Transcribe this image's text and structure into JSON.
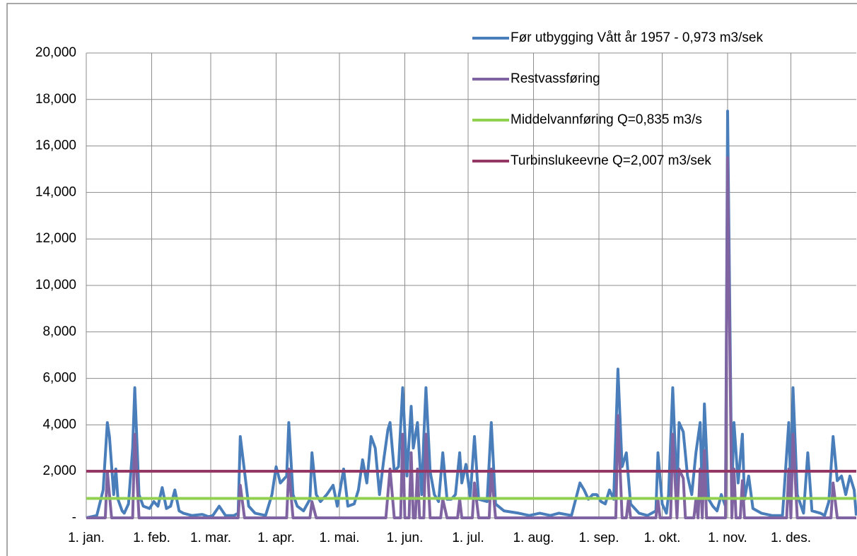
{
  "chart_data": {
    "type": "line",
    "xlim": [
      0,
      365
    ],
    "xticks": [
      {
        "value": 0,
        "label": "1. jan."
      },
      {
        "value": 31,
        "label": "1. feb."
      },
      {
        "value": 59,
        "label": "1. mar."
      },
      {
        "value": 90,
        "label": "1. apr."
      },
      {
        "value": 120,
        "label": "1. mai."
      },
      {
        "value": 151,
        "label": "1. jun."
      },
      {
        "value": 181,
        "label": "1. jul."
      },
      {
        "value": 212,
        "label": "1. aug."
      },
      {
        "value": 243,
        "label": "1. sep."
      },
      {
        "value": 273,
        "label": "1. okt."
      },
      {
        "value": 304,
        "label": "1. nov."
      },
      {
        "value": 334,
        "label": "1. des."
      }
    ],
    "ylim": [
      0,
      20000
    ],
    "yticks": [
      {
        "value": 0,
        "label": "-"
      },
      {
        "value": 2000,
        "label": "2,000"
      },
      {
        "value": 4000,
        "label": "4,000"
      },
      {
        "value": 6000,
        "label": "6,000"
      },
      {
        "value": 8000,
        "label": "8,000"
      },
      {
        "value": 10000,
        "label": "10,000"
      },
      {
        "value": 12000,
        "label": "12,000"
      },
      {
        "value": 14000,
        "label": "14,000"
      },
      {
        "value": 16000,
        "label": "16,000"
      },
      {
        "value": 18000,
        "label": "18,000"
      },
      {
        "value": 20000,
        "label": "20,000"
      }
    ],
    "grid": true,
    "legend": "upper right",
    "series": [
      {
        "name": "Før utbygging Vått år 1957 - 0,973 m3/sek",
        "color": "#4a7ebb",
        "x": [
          0,
          5,
          8,
          10,
          11,
          13,
          14,
          15,
          17,
          18,
          20,
          22,
          23,
          25,
          27,
          30,
          32,
          34,
          36,
          38,
          40,
          42,
          44,
          46,
          50,
          55,
          58,
          60,
          63,
          66,
          70,
          72,
          73,
          75,
          77,
          80,
          85,
          88,
          90,
          92,
          95,
          96,
          98,
          100,
          103,
          106,
          107,
          109,
          111,
          114,
          117,
          119,
          122,
          124,
          127,
          129,
          131,
          133,
          135,
          137,
          139,
          141,
          143,
          144,
          146,
          148,
          150,
          152,
          154,
          155,
          157,
          159,
          160,
          161,
          163,
          165,
          167,
          169,
          171,
          173,
          175,
          177,
          178,
          180,
          182,
          184,
          186,
          190,
          192,
          194,
          198,
          205,
          210,
          215,
          220,
          224,
          230,
          234,
          236,
          238,
          240,
          242,
          244,
          246,
          248,
          250,
          252,
          254,
          256,
          258,
          262,
          266,
          270,
          271,
          273,
          275,
          276,
          278,
          280,
          281,
          283,
          285,
          287,
          289,
          291,
          292,
          293,
          295,
          297,
          299,
          301,
          303,
          304,
          306,
          307,
          309,
          311,
          312,
          314,
          316,
          320,
          325,
          330,
          333,
          334,
          335,
          337,
          340,
          342,
          344,
          348,
          350,
          352,
          354,
          356,
          358,
          360,
          362,
          364,
          365
        ],
        "values": [
          0,
          100,
          1200,
          4100,
          3500,
          1000,
          2100,
          800,
          300,
          200,
          600,
          3000,
          5600,
          1000,
          500,
          400,
          700,
          500,
          1300,
          400,
          500,
          1200,
          300,
          200,
          100,
          150,
          50,
          100,
          500,
          100,
          100,
          200,
          3500,
          2000,
          500,
          200,
          100,
          1000,
          2200,
          1500,
          1800,
          4100,
          1000,
          500,
          300,
          800,
          2800,
          1000,
          700,
          1000,
          1400,
          500,
          2100,
          500,
          600,
          1200,
          2500,
          1500,
          3500,
          3000,
          1000,
          2500,
          3800,
          4100,
          2000,
          2200,
          5600,
          1800,
          4800,
          3000,
          4100,
          1000,
          3500,
          5600,
          2000,
          1000,
          700,
          2800,
          800,
          800,
          1000,
          2800,
          1500,
          2300,
          900,
          3500,
          800,
          700,
          4100,
          600,
          300,
          200,
          100,
          200,
          100,
          200,
          100,
          1500,
          1200,
          800,
          1000,
          1000,
          700,
          600,
          1200,
          800,
          6400,
          2200,
          2800,
          600,
          200,
          100,
          300,
          2800,
          600,
          200,
          1000,
          5600,
          1000,
          4100,
          3700,
          1800,
          1000,
          2800,
          4100,
          1000,
          4900,
          800,
          500,
          300,
          1000,
          500,
          17500,
          1000,
          4100,
          1500,
          3600,
          800,
          1800,
          400,
          200,
          100,
          100,
          4100,
          1000,
          5600,
          1000,
          200,
          2800,
          300,
          200,
          100,
          700,
          3500,
          1600,
          1800,
          1000,
          1800,
          1200,
          100
        ]
      },
      {
        "name": "Restvassføring",
        "color": "#8064a2",
        "x": [
          0,
          9,
          10,
          12,
          22,
          23,
          25,
          72,
          73,
          75,
          95,
          96,
          98,
          106,
          107,
          109,
          142,
          144,
          146,
          149,
          150,
          151,
          153,
          154,
          155,
          156,
          157,
          158,
          160,
          161,
          163,
          168,
          169,
          171,
          176,
          177,
          178,
          183,
          184,
          186,
          191,
          192,
          194,
          251,
          252,
          254,
          256,
          257,
          258,
          270,
          271,
          272,
          277,
          278,
          280,
          281,
          283,
          284,
          288,
          289,
          290,
          291,
          292,
          293,
          294,
          303,
          304,
          306,
          307,
          308,
          310,
          311,
          312,
          332,
          333,
          334,
          335,
          337,
          353,
          354,
          356,
          365
        ],
        "values": [
          0,
          0,
          2000,
          0,
          0,
          3600,
          0,
          0,
          1400,
          0,
          0,
          2100,
          0,
          0,
          700,
          0,
          0,
          2100,
          0,
          0,
          3600,
          0,
          0,
          2800,
          0,
          0,
          2100,
          0,
          0,
          3600,
          0,
          0,
          800,
          0,
          0,
          800,
          0,
          0,
          1500,
          0,
          0,
          2100,
          0,
          0,
          4400,
          0,
          0,
          800,
          0,
          0,
          800,
          0,
          0,
          3600,
          0,
          2100,
          1700,
          0,
          0,
          800,
          0,
          2100,
          0,
          2900,
          0,
          0,
          15500,
          0,
          2100,
          0,
          0,
          1600,
          0,
          0,
          2100,
          0,
          3600,
          0,
          0,
          1500,
          0,
          0
        ]
      },
      {
        "name": "Middelvannføring Q=0,835 m3/s",
        "color": "#92d050",
        "x": [
          0,
          365
        ],
        "values": [
          835,
          835
        ]
      },
      {
        "name": "Turbinslukeevne Q=2,007 m3/sek",
        "color": "#953764",
        "x": [
          0,
          365
        ],
        "values": [
          2007,
          2007
        ]
      }
    ]
  }
}
